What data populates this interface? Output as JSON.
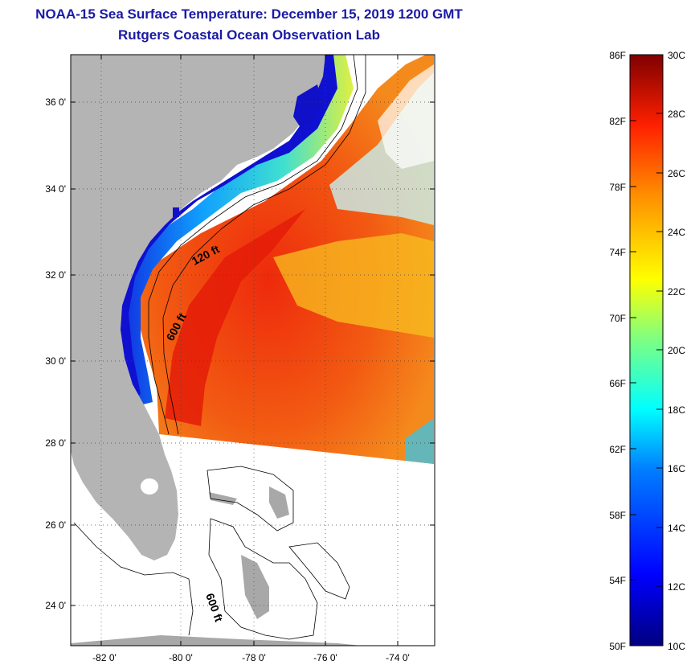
{
  "title_line1": "NOAA-15 Sea Surface Temperature:  December 15, 2019 1200 GMT",
  "title_line2": "Rutgers Coastal Ocean Observation Lab",
  "map": {
    "x_ticks": [
      "-82 0'",
      "-80 0'",
      "-78 0'",
      "-76 0'",
      "-74 0'"
    ],
    "y_ticks": [
      "36 0'",
      "34 0'",
      "32 0'",
      "30 0'",
      "28 0'",
      "26 0'",
      "24 0'"
    ],
    "contour_labels": [
      "120 ft",
      "600 ft",
      "600 ft"
    ]
  },
  "colorbar": {
    "fahrenheit_labels": [
      "86F",
      "82F",
      "78F",
      "74F",
      "70F",
      "66F",
      "62F",
      "58F",
      "54F",
      "50F"
    ],
    "celsius_labels": [
      "30C",
      "28C",
      "26C",
      "24C",
      "22C",
      "20C",
      "18C",
      "16C",
      "14C",
      "12C",
      "10C"
    ],
    "min_f": 50,
    "max_f": 86,
    "min_c": 10,
    "max_c": 30
  },
  "colors": {
    "title": "#1a1aa6",
    "land": "#b4b4b4",
    "water_none": "#ffffff",
    "sst_warm": "#f05a10",
    "sst_hot": "#e61e0a"
  }
}
